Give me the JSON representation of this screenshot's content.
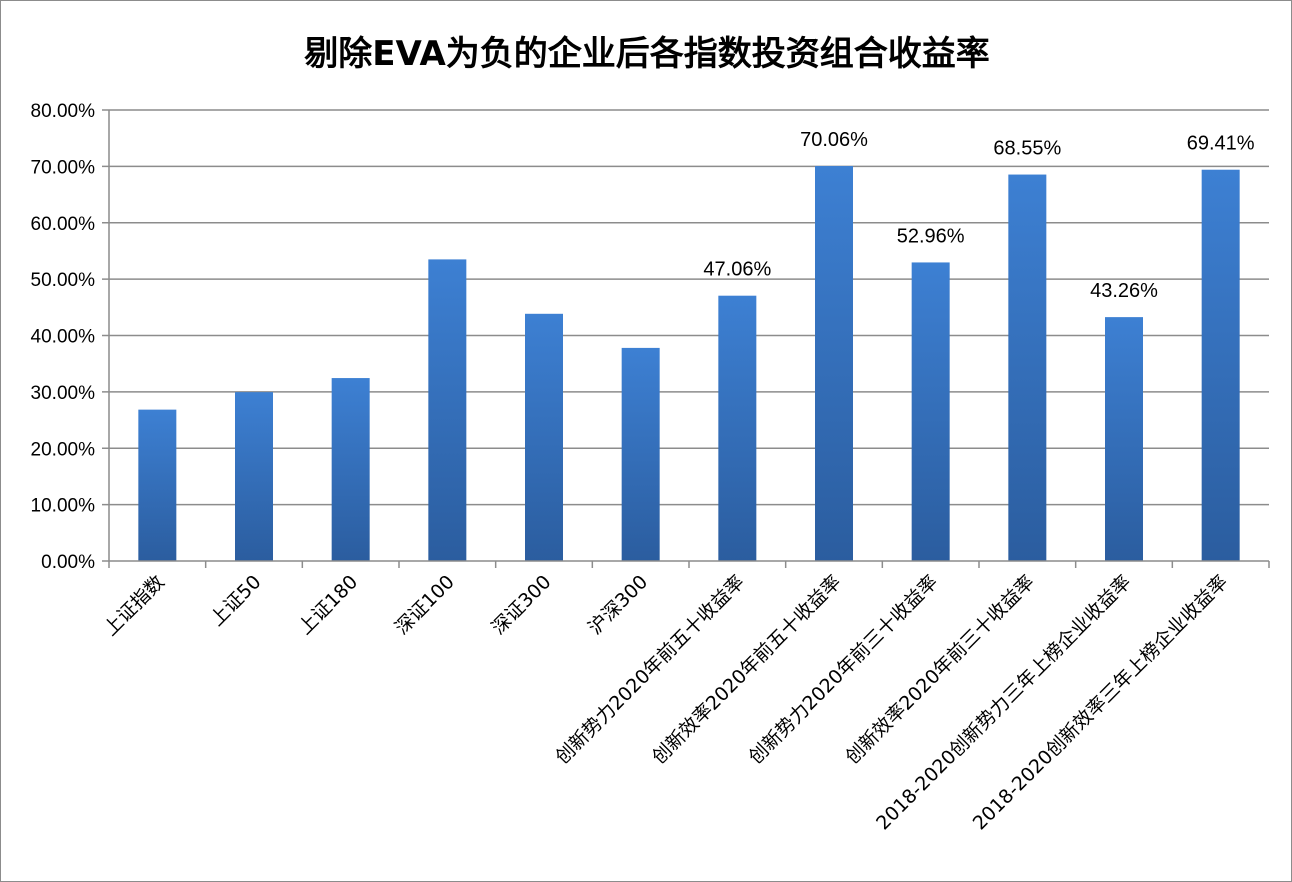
{
  "chart_data": {
    "type": "bar",
    "title": "剔除EVA为负的企业后各指数投资组合收益率",
    "xlabel": "",
    "ylabel": "",
    "ylim": [
      0,
      0.8
    ],
    "y_ticks": [
      "0.00%",
      "10.00%",
      "20.00%",
      "30.00%",
      "40.00%",
      "50.00%",
      "60.00%",
      "70.00%",
      "80.00%"
    ],
    "grid": true,
    "legend": "none",
    "categories": [
      "上证指数",
      "上证50",
      "上证180",
      "深证100",
      "深证300",
      "沪深300",
      "创新势力2020年前五十收益率",
      "创新效率2020年前五十收益率",
      "创新势力2020年前三十收益率",
      "创新效率2020年前三十收益率",
      "2018-2020创新势力三年上榜企业收益率",
      "2018-2020创新效率三年上榜企业收益率"
    ],
    "values": [
      0.2685,
      0.2995,
      0.3245,
      0.535,
      0.4385,
      0.378,
      0.4706,
      0.7006,
      0.5296,
      0.6855,
      0.4326,
      0.6941
    ],
    "data_labels": [
      "",
      "",
      "",
      "",
      "",
      "",
      "47.06%",
      "70.06%",
      "52.96%",
      "68.55%",
      "43.26%",
      "69.41%"
    ],
    "colors": {
      "bar_top": "#3d80d3",
      "bar_bottom": "#2b5d9f",
      "grid": "#8c8c8c",
      "axis": "#8c8c8c",
      "border": "#8c8c8c"
    }
  }
}
